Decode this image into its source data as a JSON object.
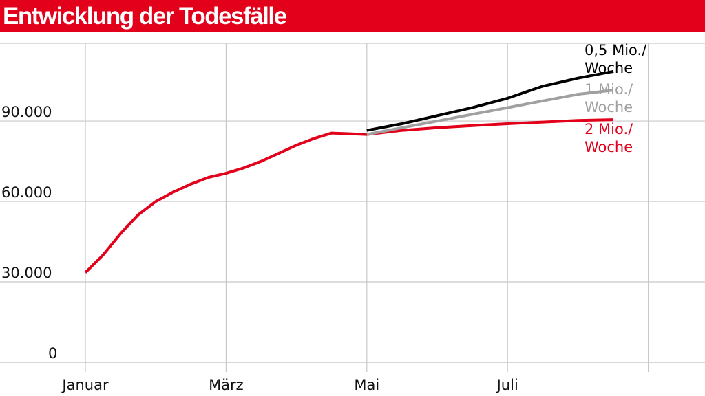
{
  "title": "Entwicklung der Todesfälle",
  "chart_data": {
    "type": "line",
    "title": "Entwicklung der Todesfälle",
    "xlabel": "",
    "ylabel": "",
    "x_ticks": [
      {
        "label": "Januar",
        "month": 0
      },
      {
        "label": "März",
        "month": 2
      },
      {
        "label": "Mai",
        "month": 4
      },
      {
        "label": "Juli",
        "month": 6
      }
    ],
    "y_ticks": [
      {
        "label": "0",
        "value": 0
      },
      {
        "label": "30.000",
        "value": 30000
      },
      {
        "label": "60.000",
        "value": 60000
      },
      {
        "label": "90.000",
        "value": 90000
      }
    ],
    "xlim": [
      0,
      8
    ],
    "ylim": [
      0,
      119000
    ],
    "grid": true,
    "colors": {
      "accent": "#e2001a",
      "black": "#000000",
      "gray": "#a0a0a0"
    },
    "series": [
      {
        "name": "2 Mio./ Woche",
        "label_lines": [
          "2 Mio./",
          "Woche"
        ],
        "color": "#e2001a",
        "points": [
          [
            0,
            33500
          ],
          [
            0.25,
            40000
          ],
          [
            0.5,
            48000
          ],
          [
            0.75,
            55000
          ],
          [
            1,
            60000
          ],
          [
            1.25,
            63500
          ],
          [
            1.5,
            66500
          ],
          [
            1.75,
            69000
          ],
          [
            2,
            70500
          ],
          [
            2.25,
            72500
          ],
          [
            2.5,
            75000
          ],
          [
            2.75,
            78000
          ],
          [
            3,
            81000
          ],
          [
            3.25,
            83500
          ],
          [
            3.5,
            85500
          ],
          [
            4,
            85000
          ],
          [
            4.5,
            86500
          ],
          [
            5,
            87500
          ],
          [
            5.5,
            88300
          ],
          [
            6,
            89000
          ],
          [
            6.5,
            89600
          ],
          [
            7,
            90200
          ],
          [
            7.5,
            90500
          ]
        ]
      },
      {
        "name": "1 Mio./ Woche",
        "label_lines": [
          "1 Mio./",
          "Woche"
        ],
        "color": "#a0a0a0",
        "points": [
          [
            4,
            85000
          ],
          [
            4.5,
            87500
          ],
          [
            5,
            90000
          ],
          [
            5.5,
            92500
          ],
          [
            6,
            95000
          ],
          [
            6.5,
            97500
          ],
          [
            7,
            100000
          ],
          [
            7.5,
            101500
          ]
        ]
      },
      {
        "name": "0,5 Mio./ Woche",
        "label_lines": [
          "0,5 Mio./",
          "Woche"
        ],
        "color": "#000000",
        "points": [
          [
            4,
            86500
          ],
          [
            4.5,
            89000
          ],
          [
            5,
            92000
          ],
          [
            5.5,
            95000
          ],
          [
            6,
            98500
          ],
          [
            6.5,
            103000
          ],
          [
            7,
            106000
          ],
          [
            7.5,
            108500
          ]
        ]
      }
    ]
  }
}
